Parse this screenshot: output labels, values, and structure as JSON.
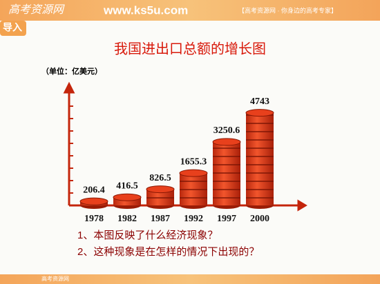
{
  "header": {
    "logo": "高考资源网",
    "url": "www.ks5u.com",
    "slogan": "【高考资源网 · 你身边的高考专家】",
    "badge": "导入"
  },
  "footer": {
    "logo": "高考资源网"
  },
  "questions": [
    "1、本图反映了什么经济现象？",
    "2、这种现象是在怎样的情况下出现的？"
  ],
  "chart_data": {
    "type": "bar",
    "title": "我国进出口总额的增长图",
    "y_label": "（单位：亿美元）",
    "categories": [
      "1978",
      "1982",
      "1987",
      "1992",
      "1997",
      "2000"
    ],
    "values": [
      206.4,
      416.5,
      826.5,
      1655.3,
      3250.6,
      4743
    ],
    "color": "#e8401c",
    "ylim": [
      0,
      6000
    ]
  }
}
